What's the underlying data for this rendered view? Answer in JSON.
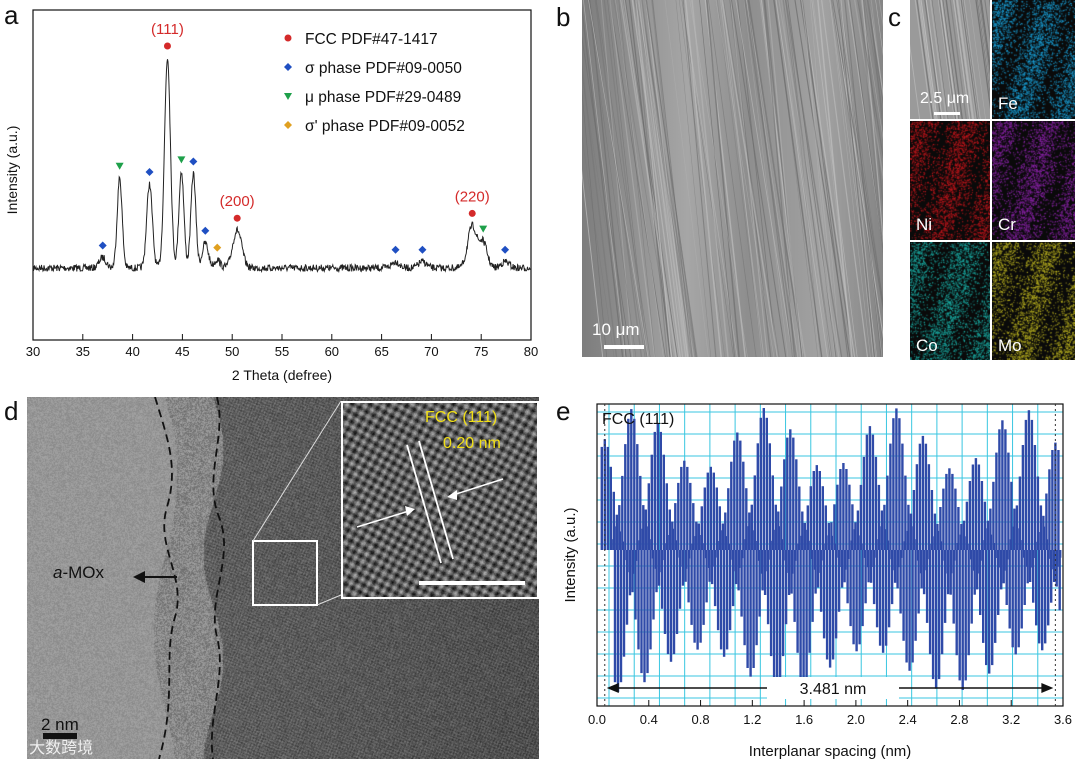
{
  "panels": {
    "a": "a",
    "b": "b",
    "c": "c",
    "d": "d",
    "e": "e"
  },
  "colors": {
    "fcc": "#d42a2a",
    "sigma": "#1f4fc2",
    "mu": "#1ea04a",
    "sigma_prime": "#e0a020",
    "profile": "#2f4aa8",
    "grid": "#39c6e0"
  },
  "chart_data": [
    {
      "type": "line",
      "id": "xrd",
      "xlabel": "2 Theta (defree)",
      "ylabel": "Intensity (a.u.)",
      "xlim": [
        30,
        80
      ],
      "xticks": [
        30,
        35,
        40,
        45,
        50,
        55,
        60,
        65,
        70,
        75,
        80
      ],
      "legend": [
        {
          "marker": "circle",
          "color": "#d42a2a",
          "label": "FCC  PDF#47-1417"
        },
        {
          "marker": "diamond",
          "color": "#1f4fc2",
          "label": "σ phase  PDF#09-0050"
        },
        {
          "marker": "triangle",
          "color": "#1ea04a",
          "label": "μ phase  PDF#29-0489"
        },
        {
          "marker": "diamond",
          "color": "#e0a020",
          "label": "σ' phase  PDF#09-0052"
        }
      ],
      "peaks": [
        {
          "x": 37.0,
          "h": 0.05,
          "w": 0.35
        },
        {
          "x": 38.7,
          "h": 0.43,
          "w": 0.25
        },
        {
          "x": 41.7,
          "h": 0.4,
          "w": 0.28
        },
        {
          "x": 43.5,
          "h": 1.0,
          "w": 0.3
        },
        {
          "x": 44.9,
          "h": 0.46,
          "w": 0.25
        },
        {
          "x": 46.1,
          "h": 0.45,
          "w": 0.25
        },
        {
          "x": 47.3,
          "h": 0.12,
          "w": 0.3
        },
        {
          "x": 48.5,
          "h": 0.04,
          "w": 0.3
        },
        {
          "x": 50.5,
          "h": 0.18,
          "w": 0.45
        },
        {
          "x": 66.4,
          "h": 0.03,
          "w": 0.4
        },
        {
          "x": 69.1,
          "h": 0.03,
          "w": 0.4
        },
        {
          "x": 74.1,
          "h": 0.2,
          "w": 0.45
        },
        {
          "x": 75.2,
          "h": 0.12,
          "w": 0.4
        },
        {
          "x": 77.4,
          "h": 0.03,
          "w": 0.4
        }
      ],
      "markers": [
        {
          "x": 37.0,
          "type": "sigma"
        },
        {
          "x": 38.7,
          "type": "mu"
        },
        {
          "x": 41.7,
          "type": "sigma"
        },
        {
          "x": 43.5,
          "type": "fcc"
        },
        {
          "x": 44.9,
          "type": "mu"
        },
        {
          "x": 46.1,
          "type": "sigma"
        },
        {
          "x": 47.3,
          "type": "sigma"
        },
        {
          "x": 48.5,
          "type": "sigma_prime"
        },
        {
          "x": 50.5,
          "type": "fcc"
        },
        {
          "x": 66.4,
          "type": "sigma"
        },
        {
          "x": 69.1,
          "type": "sigma"
        },
        {
          "x": 74.1,
          "type": "fcc"
        },
        {
          "x": 75.2,
          "type": "mu"
        },
        {
          "x": 77.4,
          "type": "sigma"
        }
      ],
      "annotations": [
        {
          "x": 43.5,
          "text": "(111)"
        },
        {
          "x": 50.5,
          "text": "(200)"
        },
        {
          "x": 74.1,
          "text": "(220)"
        }
      ]
    },
    {
      "type": "line",
      "id": "profile",
      "title": "FCC (111)",
      "xlabel": "Interplanar spacing (nm)",
      "ylabel": "Intensity (a.u.)",
      "xlim": [
        0.0,
        3.6
      ],
      "xticks": [
        "0.0",
        "0.4",
        "0.8",
        "1.2",
        "1.6",
        "2.0",
        "2.4",
        "2.8",
        "3.2",
        "3.6"
      ],
      "period_nm": 0.2048,
      "n_periods": 17,
      "start_nm": 0.06,
      "end_nm": 3.541,
      "measurement": "3.481 nm"
    }
  ],
  "panel_b": {
    "scale": "10 μm"
  },
  "panel_c": {
    "scale": "2.5 μm",
    "maps": [
      {
        "label": "Fe",
        "color": "#1a9fd6"
      },
      {
        "label": "Ni",
        "color": "#c2161c"
      },
      {
        "label": "Cr",
        "color": "#8a23a8"
      },
      {
        "label": "Co",
        "color": "#1aa8a0"
      },
      {
        "label": "Mo",
        "color": "#b8b020"
      }
    ]
  },
  "panel_d": {
    "scale": "2 nm",
    "amorphous_label_italic": "a",
    "amorphous_label": "-MOx",
    "inset_title": "FCC (111)",
    "inset_spacing": "0.20 nm"
  },
  "watermark": "© 大数跨境"
}
